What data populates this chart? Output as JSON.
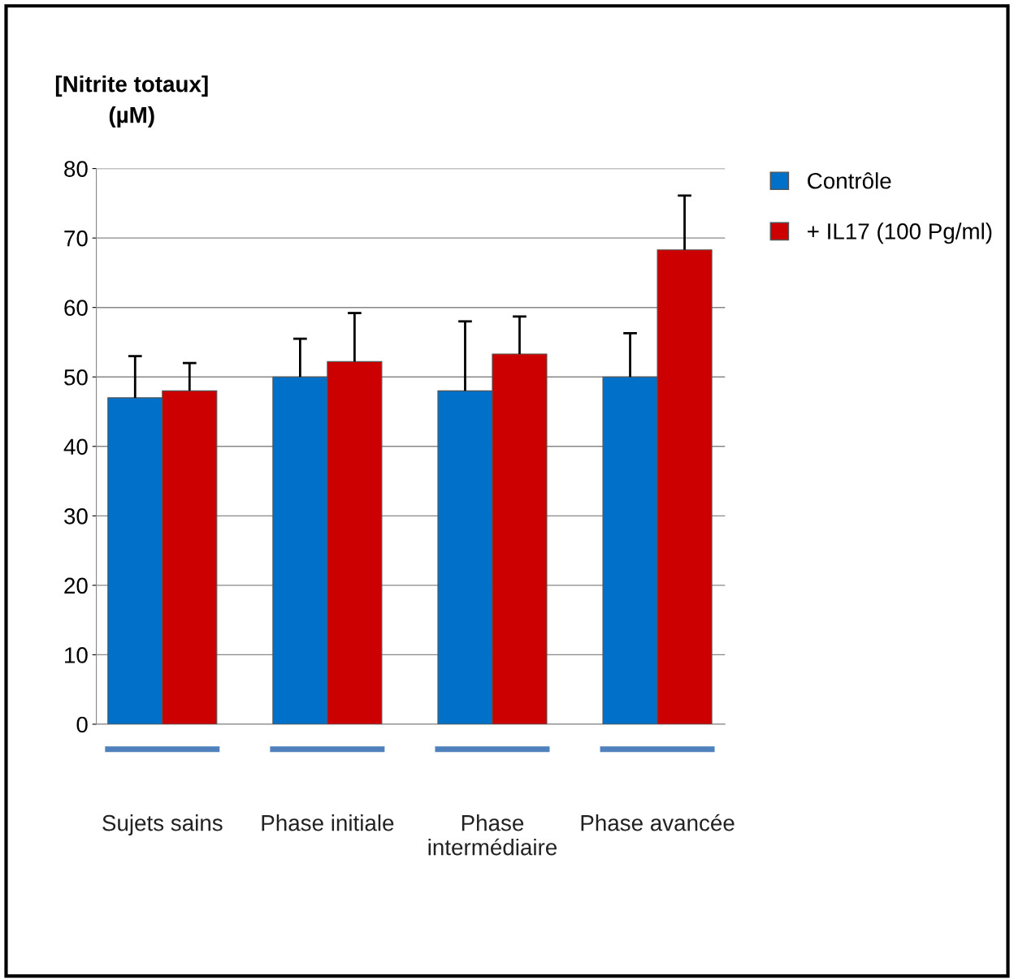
{
  "chart_data": {
    "type": "bar",
    "ylabel": "[Nitrite totaux]\n(µM)",
    "categories": [
      "Sujets sains",
      "Phase initiale",
      "Phase\nintermédiaire",
      "Phase avancée"
    ],
    "series": [
      {
        "name": "Contrôle",
        "color": "#0070c8",
        "values": [
          47,
          50,
          48,
          50
        ],
        "errors": [
          [
            47,
            53
          ],
          [
            50,
            55.5
          ],
          [
            48,
            58
          ],
          [
            50,
            56.3
          ]
        ]
      },
      {
        "name": "+ IL17 (100 Pg/ml)",
        "color": "#cc0000",
        "values": [
          48,
          52.2,
          53.3,
          68.3
        ],
        "errors": [
          [
            48,
            52
          ],
          [
            52.2,
            59.2
          ],
          [
            53.3,
            58.7
          ],
          [
            68.3,
            76.1
          ]
        ]
      }
    ],
    "ylim": [
      0,
      80
    ],
    "yticks": [
      0,
      10,
      20,
      30,
      40,
      50,
      60,
      70,
      80
    ],
    "grid": "y",
    "legend": "top right"
  }
}
